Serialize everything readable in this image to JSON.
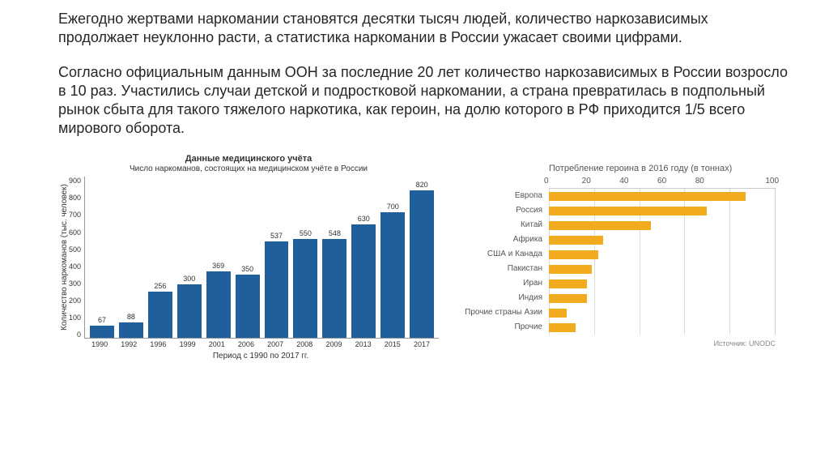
{
  "paragraph1": "Ежегодно жертвами наркомании становятся десятки тысяч людей, количество наркозависимых продолжает неуклонно расти, а статистика наркомании в России ужасает своими цифрами.",
  "paragraph2": "Согласно официальным данным ООН за последние 20 лет количество наркозависимых в России возросло в 10 раз. Участились случаи детской и подростковой наркомании, а страна превратилась в подпольный рынок сбыта для такого тяжелого наркотика, как героин, на долю которого в РФ приходится 1/5 всего мирового оборота.",
  "chart1": {
    "type": "bar",
    "title": "Данные медицинского учёта",
    "subtitle": "Число наркоманов, состоящих на медицинском учёте в России",
    "ylabel": "Количество наркоманов (тыс. человек)",
    "xlabel": "Период с 1990 по 2017 гг.",
    "categories": [
      "1990",
      "1992",
      "1996",
      "1999",
      "2001",
      "2006",
      "2007",
      "2008",
      "2009",
      "2013",
      "2015",
      "2017"
    ],
    "values": [
      67,
      88,
      256,
      300,
      369,
      350,
      537,
      550,
      548,
      630,
      700,
      820
    ],
    "ymax": 900,
    "ytick_step": 100,
    "yticks": [
      "900",
      "800",
      "700",
      "600",
      "500",
      "400",
      "300",
      "200",
      "100",
      "0"
    ],
    "bar_color": "#1f609c",
    "background_color": "#ffffff",
    "axis_color": "#999999",
    "label_fontsize": 10,
    "value_fontsize": 9
  },
  "chart2": {
    "type": "bar-horizontal",
    "title": "Потребление героина в 2016 году   (в тоннах)",
    "categories": [
      "Европа",
      "Россия",
      "Китай",
      "Африка",
      "США и Канада",
      "Пакистан",
      "Иран",
      "Индия",
      "Прочие страны Азии",
      "Прочие"
    ],
    "values": [
      87,
      70,
      45,
      24,
      22,
      19,
      17,
      17,
      8,
      12
    ],
    "xmax": 100,
    "xticks": [
      "0",
      "20",
      "40",
      "60",
      "80",
      "100"
    ],
    "bar_color": "#f0ab1f",
    "grid_color": "#dcdcdc",
    "axis_color": "#cccccc",
    "source_label": "Источник: UNODC",
    "background_color": "#ffffff",
    "label_fontsize": 10
  }
}
